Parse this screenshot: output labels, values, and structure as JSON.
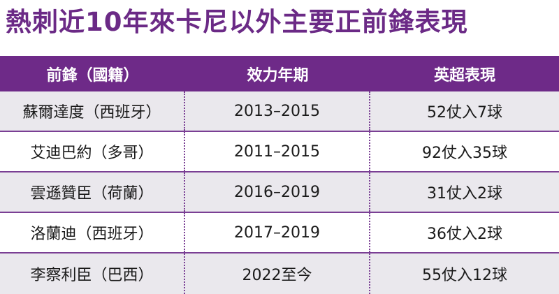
{
  "title": "熱刺近10年來卡尼以外主要正前鋒表現",
  "table": {
    "headers": [
      "前鋒（國籍）",
      "效力年期",
      "英超表現"
    ],
    "rows": [
      [
        "蘇爾達度（西班牙）",
        "2013–2015",
        "52仗入7球"
      ],
      [
        "艾迪巴約（多哥）",
        "2011–2015",
        "92仗入35球"
      ],
      [
        "雲遜贊臣（荷蘭）",
        "2016–2019",
        "31仗入2球"
      ],
      [
        "洛蘭迪（西班牙）",
        "2017–2019",
        "36仗入2球"
      ],
      [
        "李察利臣（巴西）",
        "2022至今",
        "55仗入12球"
      ]
    ]
  },
  "colors": {
    "title": "#6b2a86",
    "header_bg": "#6e2a88",
    "stripe": "#eae8ed",
    "divider": "#7a3f94"
  }
}
